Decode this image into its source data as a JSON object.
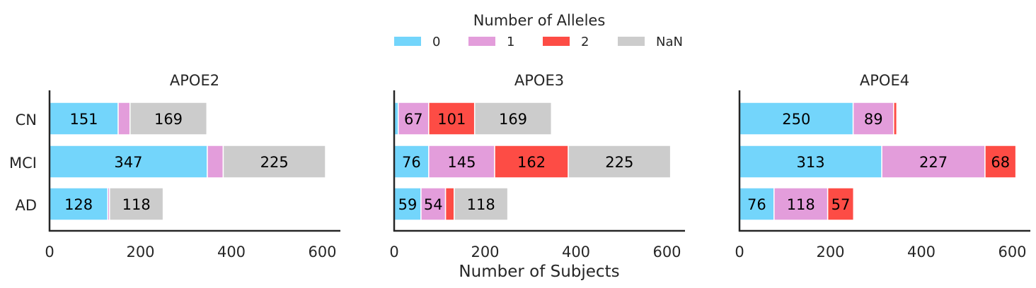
{
  "legend": {
    "title": "Number of Alleles",
    "placement": "top-center",
    "items": [
      {
        "label": "0",
        "color": "#73d5fb"
      },
      {
        "label": "1",
        "color": "#e39ddb"
      },
      {
        "label": "2",
        "color": "#fd4c45"
      },
      {
        "label": "NaN",
        "color": "#cccccc"
      }
    ]
  },
  "xlabel": "Number of Subjects",
  "chart_data": [
    {
      "type": "bar",
      "orientation": "horizontal",
      "stacked": true,
      "title": "APOE2",
      "categories": [
        "CN",
        "MCI",
        "AD"
      ],
      "xlim": [
        0,
        640
      ],
      "xticks": [
        "0",
        "200",
        "400",
        "600"
      ],
      "series": [
        {
          "name": "0",
          "values": [
            151,
            347,
            128
          ],
          "labels": [
            "151",
            "347",
            "128"
          ]
        },
        {
          "name": "1",
          "values": [
            26,
            35,
            4
          ],
          "labels": [
            "",
            "",
            ""
          ]
        },
        {
          "name": "2",
          "values": [
            0,
            0,
            0
          ],
          "labels": [
            "",
            "",
            ""
          ]
        },
        {
          "name": "NaN",
          "values": [
            169,
            225,
            118
          ],
          "labels": [
            "169",
            "225",
            "118"
          ]
        }
      ]
    },
    {
      "type": "bar",
      "orientation": "horizontal",
      "stacked": true,
      "title": "APOE3",
      "categories": [
        "CN",
        "MCI",
        "AD"
      ],
      "xlim": [
        0,
        640
      ],
      "xticks": [
        "0",
        "200",
        "400",
        "600"
      ],
      "series": [
        {
          "name": "0",
          "values": [
            9,
            76,
            59
          ],
          "labels": [
            "",
            "76",
            "59"
          ]
        },
        {
          "name": "1",
          "values": [
            67,
            145,
            54
          ],
          "labels": [
            "67",
            "145",
            "54"
          ]
        },
        {
          "name": "2",
          "values": [
            101,
            162,
            19
          ],
          "labels": [
            "101",
            "162",
            ""
          ]
        },
        {
          "name": "NaN",
          "values": [
            169,
            225,
            118
          ],
          "labels": [
            "169",
            "225",
            "118"
          ]
        }
      ]
    },
    {
      "type": "bar",
      "orientation": "horizontal",
      "stacked": true,
      "title": "APOE4",
      "categories": [
        "CN",
        "MCI",
        "AD"
      ],
      "xlim": [
        0,
        640
      ],
      "xticks": [
        "0",
        "200",
        "400",
        "600"
      ],
      "series": [
        {
          "name": "0",
          "values": [
            250,
            313,
            76
          ],
          "labels": [
            "250",
            "313",
            "76"
          ]
        },
        {
          "name": "1",
          "values": [
            89,
            227,
            118
          ],
          "labels": [
            "89",
            "227",
            "118"
          ]
        },
        {
          "name": "2",
          "values": [
            7,
            68,
            57
          ],
          "labels": [
            "",
            "68",
            "57"
          ]
        },
        {
          "name": "NaN",
          "values": [
            0,
            0,
            0
          ],
          "labels": [
            "",
            "",
            ""
          ]
        }
      ]
    }
  ]
}
